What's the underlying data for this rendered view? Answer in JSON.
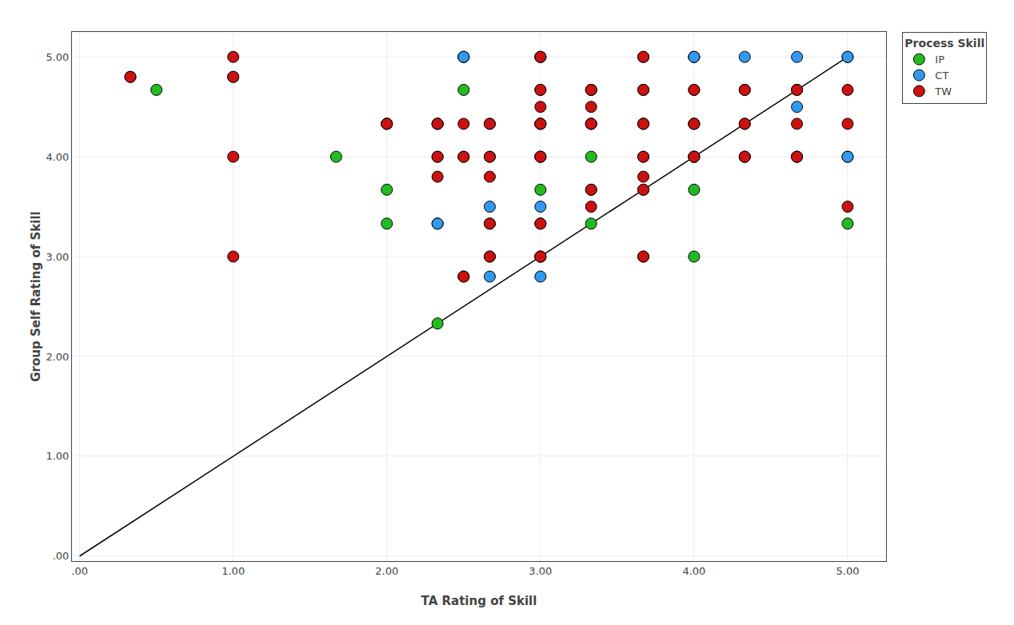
{
  "chart_data": {
    "type": "scatter",
    "xlabel": "TA Rating of Skill",
    "ylabel": "Group Self Rating of Skill",
    "xlim": [
      -0.05,
      5.25
    ],
    "ylim": [
      -0.05,
      5.25
    ],
    "xticks": [
      {
        "value": 0.0,
        "label": ".00"
      },
      {
        "value": 1.0,
        "label": "1.00"
      },
      {
        "value": 2.0,
        "label": "2.00"
      },
      {
        "value": 3.0,
        "label": "3.00"
      },
      {
        "value": 4.0,
        "label": "4.00"
      },
      {
        "value": 5.0,
        "label": "5.00"
      }
    ],
    "yticks": [
      {
        "value": 0.0,
        "label": ".00"
      },
      {
        "value": 1.0,
        "label": "1.00"
      },
      {
        "value": 2.0,
        "label": "2.00"
      },
      {
        "value": 3.0,
        "label": "3.00"
      },
      {
        "value": 4.0,
        "label": "4.00"
      },
      {
        "value": 5.0,
        "label": "5.00"
      }
    ],
    "grid": true,
    "legend": "upper right",
    "legend_title": "Process Skill",
    "series": [
      {
        "type": "line",
        "color": "#000000",
        "x": [
          0,
          5
        ],
        "values": [
          0,
          5
        ]
      },
      {
        "name": "IP",
        "type": "scatter",
        "color": "#22bb22",
        "marker": "circle",
        "x": [
          0.33,
          0.5,
          1.0,
          1.67,
          2.0,
          2.0,
          2.0,
          2.33,
          2.33,
          2.33,
          2.33,
          2.5,
          2.5,
          2.5,
          2.67,
          2.67,
          2.67,
          2.67,
          3.0,
          3.0,
          3.0,
          3.0,
          3.0,
          3.0,
          3.0,
          3.33,
          3.33,
          3.33,
          3.33,
          3.67,
          3.67,
          3.67,
          4.0,
          4.0,
          4.0,
          4.0,
          4.0,
          4.0,
          4.33,
          4.33,
          4.67,
          4.67,
          5.0,
          5.0,
          5.0
        ],
        "values": [
          4.8,
          4.67,
          4.8,
          4.0,
          4.33,
          3.67,
          3.33,
          4.33,
          4.0,
          3.33,
          2.33,
          5.0,
          4.67,
          4.0,
          4.33,
          4.0,
          3.33,
          3.0,
          5.0,
          4.67,
          4.33,
          4.0,
          3.67,
          3.33,
          3.0,
          4.67,
          4.33,
          4.0,
          3.33,
          4.33,
          4.0,
          3.0,
          5.0,
          4.67,
          4.33,
          4.0,
          3.67,
          3.0,
          4.33,
          4.0,
          4.67,
          4.0,
          5.0,
          4.0,
          3.33
        ]
      },
      {
        "name": "CT",
        "type": "scatter",
        "color": "#3399ee",
        "marker": "circle",
        "x": [
          2.33,
          2.33,
          2.5,
          2.5,
          2.67,
          2.67,
          3.0,
          3.0,
          3.0,
          3.0,
          3.0,
          3.0,
          3.33,
          3.33,
          3.33,
          3.67,
          3.67,
          3.67,
          3.67,
          4.0,
          4.0,
          4.0,
          4.0,
          4.0,
          4.33,
          4.33,
          4.33,
          4.67,
          4.67,
          4.67,
          5.0,
          5.0
        ],
        "values": [
          4.33,
          3.33,
          5.0,
          5.0,
          3.5,
          2.8,
          5.0,
          4.33,
          4.0,
          3.5,
          3.0,
          2.8,
          4.67,
          4.33,
          3.67,
          5.0,
          4.67,
          4.33,
          3.67,
          5.0,
          5.0,
          4.33,
          4.0,
          4.0,
          5.0,
          4.67,
          4.0,
          5.0,
          4.5,
          4.0,
          5.0,
          4.0
        ]
      },
      {
        "name": "TW",
        "type": "scatter",
        "color": "#cc1111",
        "marker": "circle",
        "x": [
          0.33,
          1.0,
          1.0,
          1.0,
          1.0,
          2.0,
          2.0,
          2.33,
          2.33,
          2.33,
          2.5,
          2.5,
          2.5,
          2.5,
          2.67,
          2.67,
          2.67,
          2.67,
          2.67,
          3.0,
          3.0,
          3.0,
          3.0,
          3.0,
          3.0,
          3.0,
          3.33,
          3.33,
          3.33,
          3.33,
          3.33,
          3.67,
          3.67,
          3.67,
          3.67,
          3.67,
          3.67,
          3.67,
          4.0,
          4.0,
          4.0,
          4.33,
          4.33,
          4.33,
          4.67,
          4.67,
          4.67,
          5.0,
          5.0,
          5.0
        ],
        "values": [
          4.8,
          5.0,
          4.8,
          4.0,
          3.0,
          4.33,
          4.33,
          4.33,
          4.0,
          3.8,
          4.33,
          4.0,
          2.8,
          2.8,
          4.33,
          4.0,
          3.8,
          3.33,
          3.0,
          5.0,
          4.67,
          4.5,
          4.33,
          4.0,
          3.33,
          3.0,
          4.67,
          4.5,
          4.33,
          3.67,
          3.5,
          5.0,
          4.67,
          4.33,
          4.0,
          3.8,
          3.67,
          3.0,
          4.67,
          4.33,
          4.0,
          4.67,
          4.33,
          4.0,
          4.67,
          4.33,
          4.0,
          4.67,
          4.33,
          3.5
        ]
      }
    ]
  }
}
